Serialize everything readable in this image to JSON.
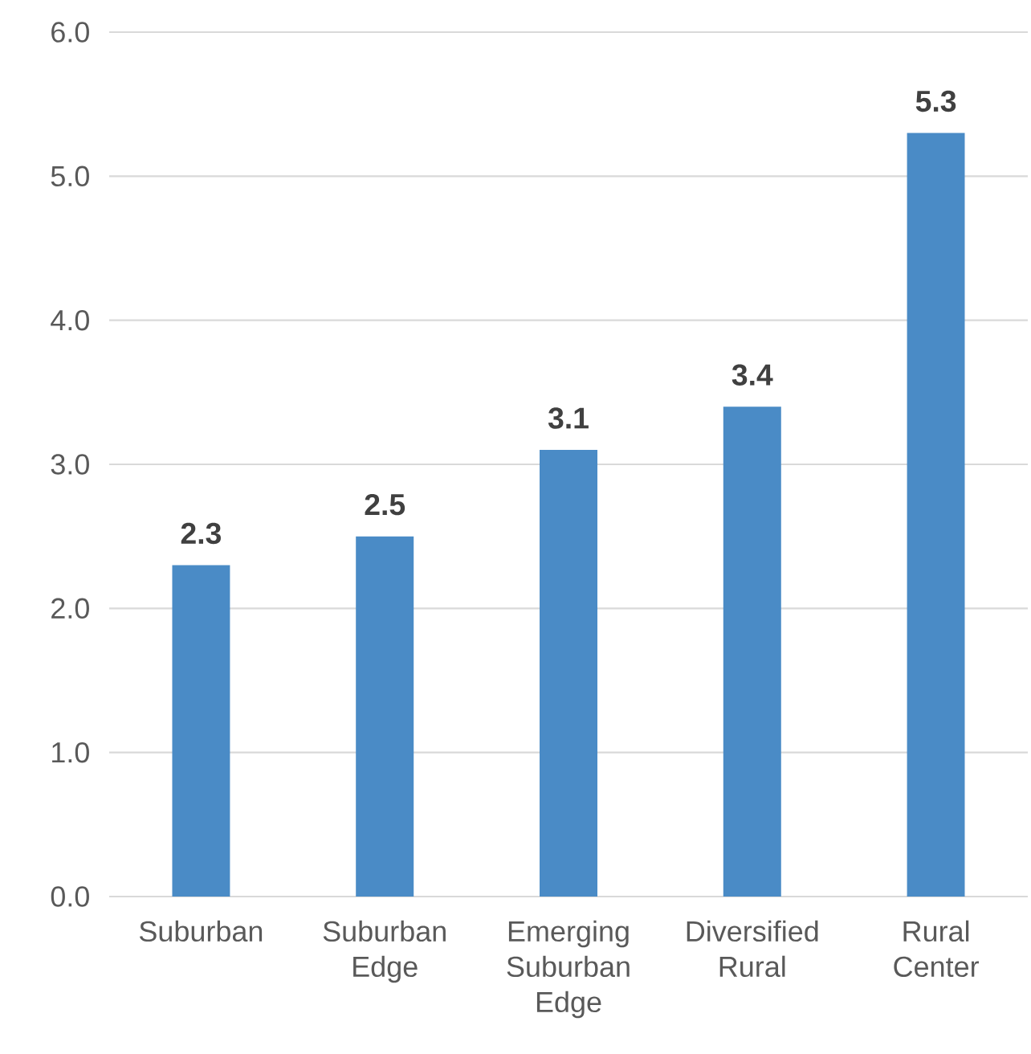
{
  "chart_data": {
    "type": "bar",
    "categories": [
      "Suburban",
      "Suburban Edge",
      "Emerging Suburban Edge",
      "Diversified Rural",
      "Rural Center"
    ],
    "values": [
      2.3,
      2.5,
      3.1,
      3.4,
      5.3
    ],
    "color": "#4a8bc6",
    "data_labels": true,
    "grid": "y",
    "ylim": [
      0,
      6
    ],
    "yticks": [
      {
        "value": 0,
        "label": "0.0"
      },
      {
        "value": 1,
        "label": "1.0"
      },
      {
        "value": 2,
        "label": "2.0"
      },
      {
        "value": 3,
        "label": "3.0"
      },
      {
        "value": 4,
        "label": "4.0"
      },
      {
        "value": 5,
        "label": "5.0"
      },
      {
        "value": 6,
        "label": "6.0"
      }
    ]
  }
}
